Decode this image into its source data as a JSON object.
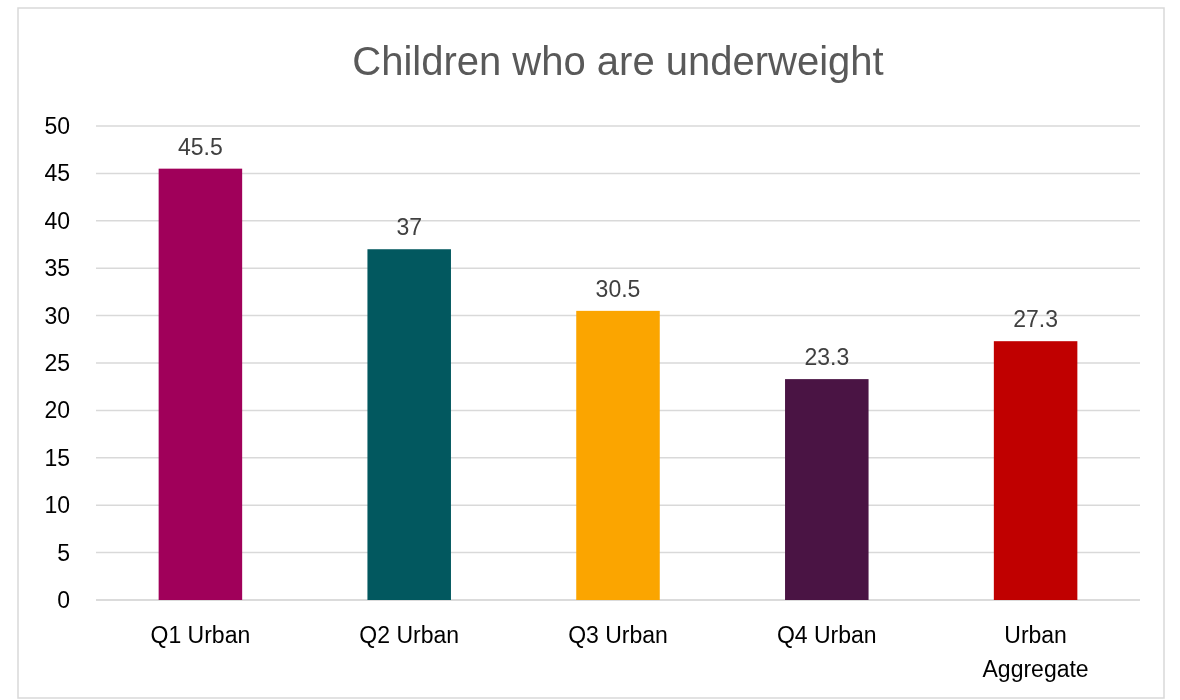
{
  "chart_data": {
    "type": "bar",
    "title": "Children who are underweight",
    "categories": [
      "Q1 Urban",
      "Q2 Urban",
      "Q3 Urban",
      "Q4 Urban",
      "Urban Aggregate"
    ],
    "values": [
      45.5,
      37,
      30.5,
      23.3,
      27.3
    ],
    "colors": [
      "#a0005a",
      "#02585f",
      "#fba500",
      "#4a1444",
      "#c00000"
    ],
    "ylim": [
      0,
      50
    ],
    "yticks": [
      0,
      5,
      10,
      15,
      20,
      25,
      30,
      35,
      40,
      45,
      50
    ],
    "grid": "y",
    "data_labels": true
  }
}
